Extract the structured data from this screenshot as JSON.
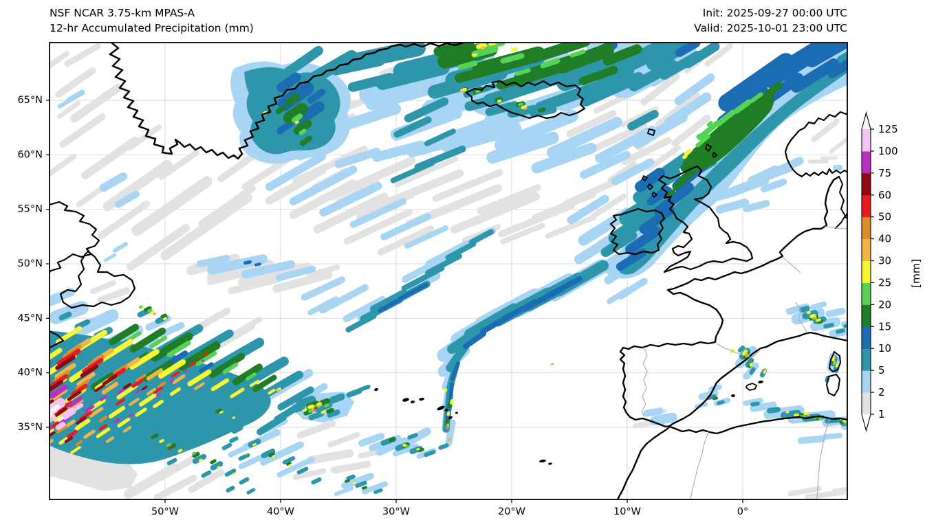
{
  "header": {
    "title_line1": "NSF NCAR 3.75-km MPAS-A",
    "title_line2": "12-hr Accumulated Precipitation (mm)",
    "init_label": "Init: 2025-09-27 00:00 UTC",
    "valid_label": "Valid: 2025-10-01 23:00 UTC"
  },
  "axes": {
    "lat_tick_labels": [
      "65°N",
      "60°N",
      "55°N",
      "50°N",
      "45°N",
      "40°N",
      "35°N"
    ],
    "lon_tick_labels": [
      "50°W",
      "40°W",
      "30°W",
      "20°W",
      "10°W",
      "0°"
    ]
  },
  "colorbar": {
    "unit_label": "[mm]",
    "tick_labels": [
      "1",
      "2",
      "5",
      "10",
      "15",
      "20",
      "25",
      "30",
      "40",
      "50",
      "60",
      "75",
      "100",
      "125"
    ],
    "segment_colors": [
      "#e2e2e2",
      "#a9d5f5",
      "#2e96ab",
      "#1c6cb4",
      "#1f7d26",
      "#57d254",
      "#f7f633",
      "#efb44c",
      "#db8e28",
      "#e81b22",
      "#8e0913",
      "#ba30c2",
      "#f1c5f1"
    ],
    "over_color": "#fcf0fd",
    "under_color": "#ffffff"
  },
  "map_style": {
    "coastline_color": "#000000",
    "border_color": "#aaaaaa",
    "gridline_color": "#d8d8d8",
    "frame_color": "#000000",
    "background_color": "#ffffff"
  }
}
